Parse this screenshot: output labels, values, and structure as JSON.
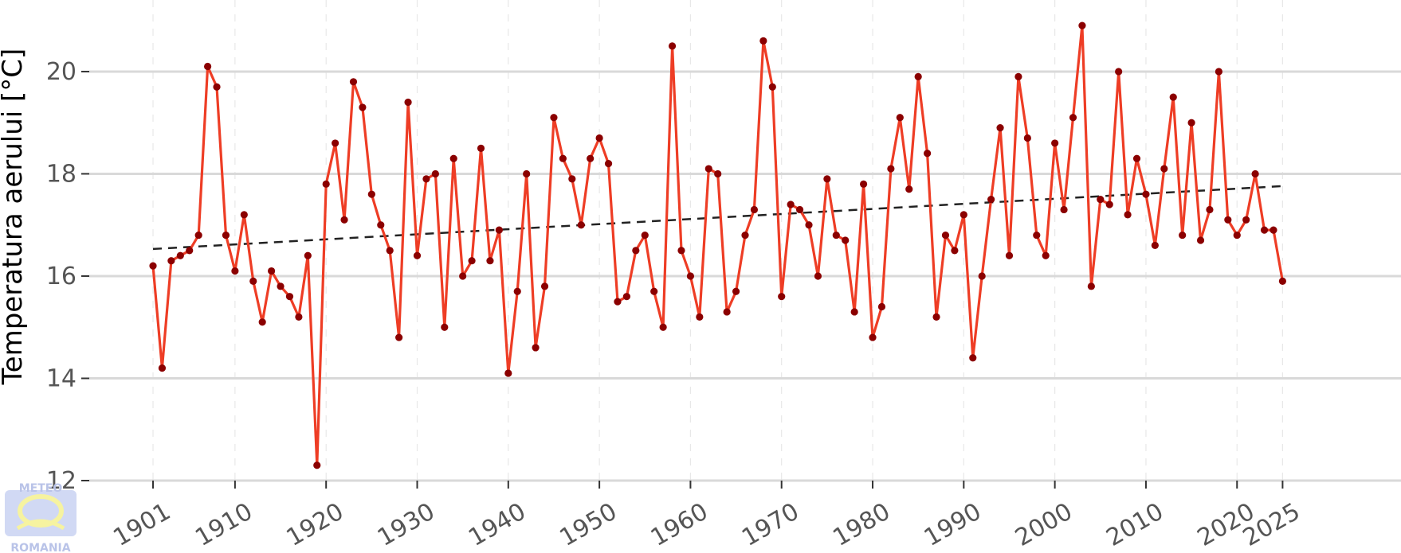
{
  "chart_data": {
    "type": "line",
    "title": "",
    "xlabel": "",
    "ylabel": "Temperatura aerului [°C]",
    "xlim": [
      1894,
      2038
    ],
    "ylim": [
      12,
      21.4
    ],
    "x_ticks": [
      1901,
      1910,
      1920,
      1930,
      1940,
      1950,
      1960,
      1970,
      1980,
      1990,
      2000,
      2010,
      2020,
      2025
    ],
    "y_ticks": [
      12,
      14,
      16,
      18,
      20
    ],
    "grid": true,
    "legend": "none",
    "colors": {
      "line": "#ee3d25",
      "points": "#8b0000",
      "trend": "#222222",
      "grid_major": "#d9d9d9",
      "grid_minor": "#e8e8e8"
    },
    "logo": {
      "top_text": "METEO",
      "bottom_text": "ROMANIA"
    },
    "series": [
      {
        "x": [
          1901,
          1902,
          1903,
          1904,
          1905,
          1906,
          1907,
          1908,
          1909,
          1910,
          1911,
          1912,
          1913,
          1914,
          1915,
          1916,
          1917,
          1918,
          1919,
          1920,
          1921,
          1922,
          1923,
          1924,
          1925,
          1926,
          1927,
          1928,
          1929,
          1930,
          1931,
          1932,
          1933,
          1934,
          1935,
          1936,
          1937,
          1938,
          1939,
          1940,
          1941,
          1942,
          1943,
          1944,
          1945,
          1946,
          1947,
          1948,
          1949,
          1950,
          1951,
          1952,
          1953,
          1954,
          1955,
          1956,
          1957,
          1958,
          1959,
          1960,
          1961,
          1962,
          1963,
          1964,
          1965,
          1966,
          1967,
          1968,
          1969,
          1970,
          1971,
          1972,
          1973,
          1974,
          1975,
          1976,
          1977,
          1978,
          1979,
          1980,
          1981,
          1982,
          1983,
          1984,
          1985,
          1986,
          1987,
          1988,
          1989,
          1990,
          1991,
          1992,
          1993,
          1994,
          1995,
          1996,
          1997,
          1998,
          1999,
          2000,
          2001,
          2002,
          2003,
          2004,
          2005,
          2006,
          2007,
          2008,
          2009,
          2010,
          2011,
          2012,
          2013,
          2014,
          2015,
          2016,
          2017,
          2018,
          2019,
          2020,
          2021,
          2022,
          2023,
          2024,
          2025
        ],
        "values": [
          16.2,
          14.2,
          16.3,
          16.4,
          16.5,
          16.8,
          20.1,
          19.7,
          16.8,
          16.1,
          17.2,
          15.9,
          15.1,
          16.1,
          15.8,
          15.6,
          15.2,
          16.4,
          12.3,
          17.8,
          18.6,
          17.1,
          19.8,
          19.3,
          17.6,
          17.0,
          16.5,
          14.8,
          19.4,
          16.4,
          17.9,
          18.0,
          15.0,
          18.3,
          16.0,
          16.3,
          18.5,
          16.3,
          16.9,
          14.1,
          15.7,
          18.0,
          14.6,
          15.8,
          19.1,
          18.3,
          17.9,
          17.0,
          18.3,
          18.7,
          18.2,
          15.5,
          15.6,
          16.5,
          16.8,
          15.7,
          15.0,
          20.5,
          16.5,
          16.0,
          15.2,
          18.1,
          18.0,
          15.3,
          15.7,
          16.8,
          17.3,
          20.6,
          19.7,
          15.6,
          17.4,
          17.3,
          17.0,
          16.0,
          17.9,
          16.8,
          16.7,
          15.3,
          17.8,
          14.8,
          15.4,
          18.1,
          19.1,
          17.7,
          19.9,
          18.4,
          15.2,
          16.8,
          16.5,
          17.2,
          14.4,
          16.0,
          17.5,
          18.9,
          16.4,
          19.9,
          18.7,
          16.8,
          16.4,
          18.6,
          17.3,
          19.1,
          20.9,
          15.8,
          17.5,
          17.4,
          20.0,
          17.2,
          18.3,
          17.6,
          16.6,
          18.1,
          19.5,
          16.8,
          19.0,
          16.7,
          17.3,
          20.0,
          17.1,
          16.8,
          17.1,
          18.0,
          16.9,
          16.9,
          15.9
        ]
      }
    ],
    "trend": {
      "x": [
        1901,
        2025
      ],
      "y": [
        16.53,
        17.76
      ]
    }
  }
}
